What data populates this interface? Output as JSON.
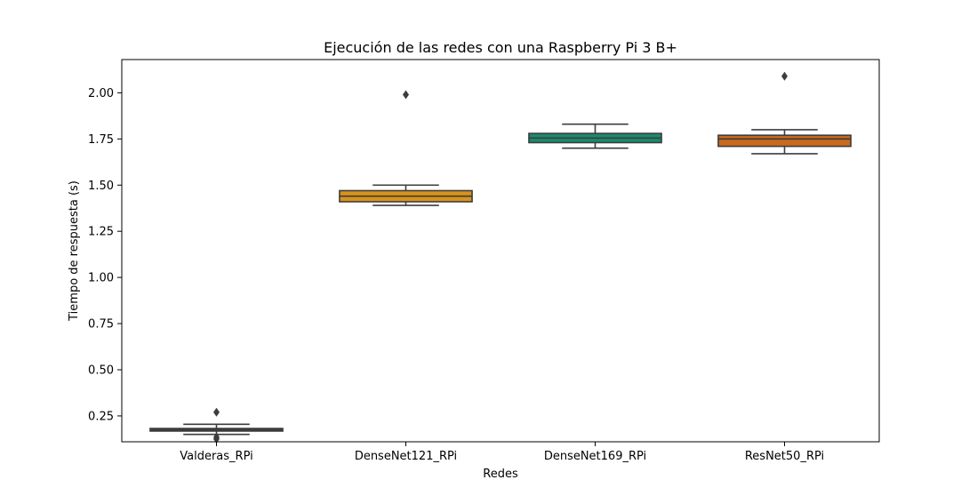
{
  "chart_data": {
    "type": "box",
    "title": "Ejecución de las redes con una Raspberry Pi 3 B+",
    "xlabel": "Redes",
    "ylabel": "Tiempo de respuesta (s)",
    "ylim": [
      0.11,
      2.18
    ],
    "yticks": [
      "0.25",
      "0.50",
      "0.75",
      "1.00",
      "1.25",
      "1.50",
      "1.75",
      "2.00"
    ],
    "grid": false,
    "categories": [
      "Valderas_RPi",
      "DenseNet121_RPi",
      "DenseNet169_RPi",
      "ResNet50_RPi"
    ],
    "boxes": [
      {
        "name": "Valderas_RPi",
        "color": "#2b2b2b",
        "whislo": 0.15,
        "q1": 0.168,
        "median": 0.175,
        "q3": 0.182,
        "whishi": 0.205,
        "fliers": [
          0.27,
          0.125,
          0.135
        ]
      },
      {
        "name": "DenseNet121_RPi",
        "color": "#d9931a",
        "whislo": 1.39,
        "q1": 1.41,
        "median": 1.44,
        "q3": 1.47,
        "whishi": 1.5,
        "fliers": [
          1.99
        ]
      },
      {
        "name": "DenseNet169_RPi",
        "color": "#1a8a6e",
        "whislo": 1.7,
        "q1": 1.73,
        "median": 1.755,
        "q3": 1.78,
        "whishi": 1.83,
        "fliers": []
      },
      {
        "name": "ResNet50_RPi",
        "color": "#c96a1e",
        "whislo": 1.67,
        "q1": 1.71,
        "median": 1.75,
        "q3": 1.77,
        "whishi": 1.8,
        "fliers": [
          2.09
        ]
      }
    ]
  }
}
